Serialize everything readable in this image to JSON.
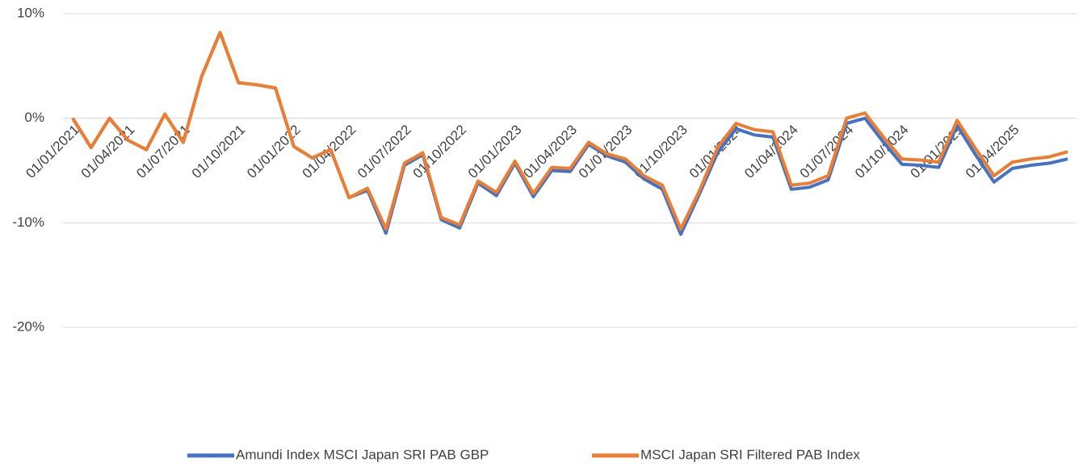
{
  "chart_data": {
    "type": "line",
    "categories": [
      "01/01/2021",
      null,
      null,
      "01/04/2021",
      null,
      null,
      "01/07/2021",
      null,
      null,
      "01/10/2021",
      null,
      null,
      "01/01/2022",
      null,
      null,
      "01/04/2022",
      null,
      null,
      "01/07/2022",
      null,
      null,
      "01/10/2022",
      null,
      null,
      "01/01/2023",
      null,
      null,
      "01/04/2023",
      null,
      null,
      "01/07/2023",
      null,
      null,
      "01/10/2023",
      null,
      null,
      "01/01/2024",
      null,
      null,
      "01/04/2024",
      null,
      null,
      "01/07/2024",
      null,
      null,
      "01/10/2024",
      null,
      null,
      "01/01/2025",
      null,
      null,
      "01/04/2025",
      null,
      null,
      null
    ],
    "series": [
      {
        "name": "Amundi Index MSCI Japan SRI PAB GBP",
        "color": "#4472c4",
        "values": [
          0,
          -2.8,
          0,
          -2.1,
          -3.0,
          0.4,
          -2.3,
          4.0,
          8.2,
          3.4,
          3.2,
          2.9,
          -2.7,
          -3.8,
          -3.0,
          -7.6,
          -6.9,
          -11.0,
          -4.5,
          -3.5,
          -9.7,
          -10.5,
          -6.2,
          -7.4,
          -4.3,
          -7.5,
          -5.0,
          -5.1,
          -2.5,
          -3.6,
          -4.2,
          -5.8,
          -6.8,
          -11.1,
          -7.3,
          -3.3,
          -1.0,
          -1.6,
          -1.8,
          -6.8,
          -6.6,
          -5.9,
          -0.5,
          0.0,
          -2.3,
          -4.4,
          -4.5,
          -4.7,
          -0.7,
          -3.5,
          -6.1,
          -4.8,
          -4.5,
          -4.3,
          -3.9
        ]
      },
      {
        "name": "MSCI Japan SRI Filtered PAB Index",
        "color": "#ed7d31",
        "values": [
          0,
          -2.8,
          0,
          -2.1,
          -3.0,
          0.4,
          -2.3,
          4.0,
          8.2,
          3.4,
          3.2,
          2.9,
          -2.7,
          -3.8,
          -3.0,
          -7.6,
          -6.7,
          -10.6,
          -4.3,
          -3.3,
          -9.5,
          -10.2,
          -6.0,
          -7.1,
          -4.1,
          -7.2,
          -4.7,
          -4.8,
          -2.3,
          -3.4,
          -3.9,
          -5.5,
          -6.4,
          -10.6,
          -7.0,
          -2.8,
          -0.5,
          -1.1,
          -1.3,
          -6.4,
          -6.2,
          -5.5,
          0.0,
          0.5,
          -1.8,
          -3.9,
          -4.0,
          -4.2,
          -0.2,
          -2.9,
          -5.5,
          -4.2,
          -3.9,
          -3.7,
          -3.2
        ]
      }
    ],
    "ylim": [
      -20,
      10
    ],
    "yticks": [
      {
        "value": -20,
        "label": "-20%"
      },
      {
        "value": -10,
        "label": "-10%"
      },
      {
        "value": 0,
        "label": "0%"
      },
      {
        "value": 10,
        "label": "10%"
      }
    ],
    "grid": true,
    "legend": "bottom"
  }
}
